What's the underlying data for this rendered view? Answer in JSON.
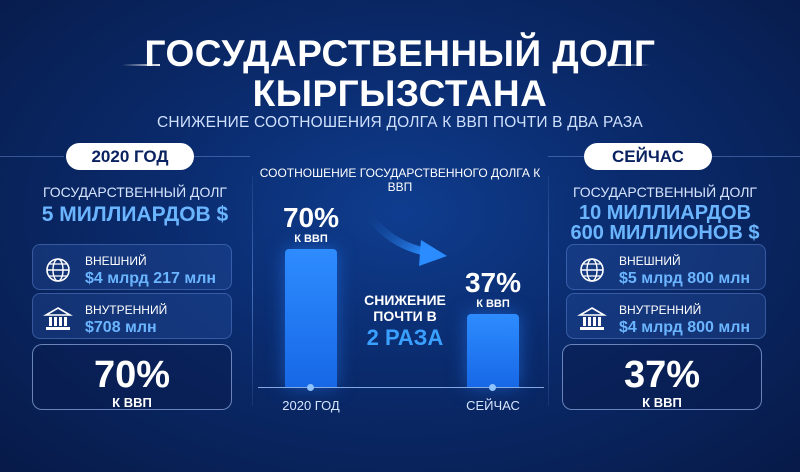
{
  "header": {
    "title_line1": "ГОСУДАРСТВЕННЫЙ ДОЛГ",
    "title_line2": "КЫРГЫЗСТАНА",
    "subtitle": "СНИЖЕНИЕ СООТНОШЕНИЯ ДОЛГА К ВВП ПОЧТИ В ДВА РАЗА"
  },
  "left": {
    "pill": "2020 ГОД",
    "debt_label": "ГОСУДАРСТВЕННЫЙ ДОЛГ",
    "debt_value_line1": "5 МИЛЛИАРДОВ $",
    "external": {
      "title": "ВНЕШНИЙ",
      "value": "$4 млрд 217 млн",
      "icon": "globe-icon"
    },
    "internal": {
      "title": "ВНУТРЕННИЙ",
      "value": "$708 млн",
      "icon": "bank-icon"
    },
    "ratio": "70%",
    "ratio_label": "К ВВП"
  },
  "right": {
    "pill": "СЕЙЧАС",
    "debt_label": "ГОСУДАРСТВЕННЫЙ ДОЛГ",
    "debt_value_line1": "10 МИЛЛИАРДОВ",
    "debt_value_line2": "600 МИЛЛИОНОВ $",
    "external": {
      "title": "ВНЕШНИЙ",
      "value": "$5 млрд 800 млн",
      "icon": "globe-icon"
    },
    "internal": {
      "title": "ВНУТРЕННИЙ",
      "value": "$4 млрд 800 млн",
      "icon": "bank-icon"
    },
    "ratio": "37%",
    "ratio_label": "К ВВП"
  },
  "chart_data": {
    "type": "bar",
    "title": "СООТНОШЕНИЕ ГОСУДАРСТВЕННОГО ДОЛГА К ВВП",
    "categories": [
      "2020 ГОД",
      "СЕЙЧАС"
    ],
    "values": [
      70,
      37
    ],
    "value_labels": [
      "70%",
      "37%"
    ],
    "value_sublabels": [
      "К ВВП",
      "К ВВП"
    ],
    "ylim": [
      0,
      75
    ],
    "annotation_line1": "СНИЖЕНИЕ",
    "annotation_line2": "ПОЧТИ В",
    "annotation_big": "2 РАЗА"
  },
  "colors": {
    "accent": "#6bb5ff",
    "bar": "#1f7af0",
    "background": "#0a2a6b"
  }
}
